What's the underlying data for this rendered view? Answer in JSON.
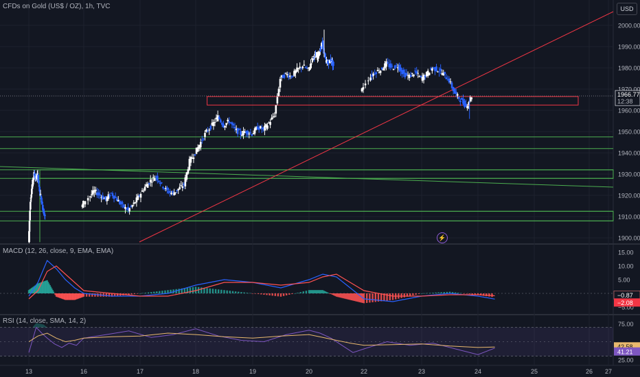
{
  "header": {
    "symbol_title": "CFDs on Gold (US$ / OZ), 1h, TVC",
    "currency": "USD"
  },
  "price_pane": {
    "current_price": "1966.77",
    "countdown": "12:38",
    "y_ticks": [
      "2000.00",
      "1990.00",
      "1980.00",
      "1970.00",
      "1960.00",
      "1950.00",
      "1940.00",
      "1930.00",
      "1920.00",
      "1910.00",
      "1900.00"
    ]
  },
  "macd_pane": {
    "title": "MACD (12, 26, close, 9, EMA, EMA)",
    "y_ticks": [
      "15.00",
      "10.00",
      "5.00",
      "−5.00"
    ],
    "value_badges": [
      "−0.87",
      "−2.08"
    ]
  },
  "rsi_pane": {
    "title": "RSI (14, close, SMA, 14, 2)",
    "y_ticks": [
      "75.00",
      "25.00"
    ],
    "value_badges": [
      "42.58",
      "41.21"
    ]
  },
  "x_axis": {
    "ticks": [
      "13",
      "16",
      "17",
      "18",
      "19",
      "20",
      "22",
      "23",
      "24",
      "25",
      "26",
      "27"
    ]
  },
  "colors": {
    "background": "#131722",
    "up_candle": "#ffffff",
    "down_candle": "#2962ff",
    "support_lines": "#4caf50",
    "trend_line": "#f23645",
    "macd_line": "#2962ff",
    "signal_line": "#ff5252",
    "hist_pos": "#26a69a",
    "hist_neg": "#ff5252",
    "rsi_line": "#7e57c2",
    "rsi_ma": "#e9b96e"
  },
  "chart_data": {
    "type": "candlestick",
    "title": "CFDs on Gold (US$ / OZ), 1h, TVC",
    "ylim": [
      1896,
      2006
    ],
    "x_tick_positions": [
      13,
      16,
      17,
      18,
      19,
      20,
      22,
      23,
      24,
      25,
      26,
      27
    ],
    "price_series": [
      [
        13.0,
        1898.0
      ],
      [
        13.1,
        1918.0
      ],
      [
        13.2,
        1925.0
      ],
      [
        13.3,
        1930.0
      ],
      [
        13.4,
        1928.0
      ],
      [
        13.5,
        1929.5
      ],
      [
        13.6,
        1922.0
      ],
      [
        13.7,
        1918.0
      ],
      [
        13.8,
        1913.0
      ],
      [
        13.9,
        1910.0
      ],
      [
        15.9,
        1914.0
      ],
      [
        16.1,
        1919.0
      ],
      [
        16.2,
        1922.0
      ],
      [
        16.3,
        1920.0
      ],
      [
        16.4,
        1918.0
      ],
      [
        16.5,
        1921.0
      ],
      [
        16.6,
        1918.0
      ],
      [
        16.7,
        1915.0
      ],
      [
        16.8,
        1913.0
      ],
      [
        16.9,
        1916.0
      ],
      [
        17.0,
        1920.0
      ],
      [
        17.1,
        1924.0
      ],
      [
        17.2,
        1927.0
      ],
      [
        17.3,
        1929.0
      ],
      [
        17.4,
        1925.0
      ],
      [
        17.5,
        1922.0
      ],
      [
        17.6,
        1921.0
      ],
      [
        17.7,
        1923.0
      ],
      [
        17.8,
        1925.0
      ],
      [
        17.9,
        1936.0
      ],
      [
        18.0,
        1940.0
      ],
      [
        18.1,
        1945.0
      ],
      [
        18.2,
        1950.0
      ],
      [
        18.3,
        1953.0
      ],
      [
        18.4,
        1957.0
      ],
      [
        18.5,
        1953.0
      ],
      [
        18.6,
        1955.0
      ],
      [
        18.7,
        1951.0
      ],
      [
        18.8,
        1949.0
      ],
      [
        18.9,
        1950.0
      ],
      [
        19.0,
        1949.0
      ],
      [
        19.1,
        1952.0
      ],
      [
        19.2,
        1951.0
      ],
      [
        19.3,
        1954.0
      ],
      [
        19.4,
        1958.0
      ],
      [
        19.5,
        1975.0
      ],
      [
        19.6,
        1977.0
      ],
      [
        19.7,
        1976.0
      ],
      [
        19.8,
        1979.0
      ],
      [
        19.9,
        1981.0
      ],
      [
        20.0,
        1979.0
      ],
      [
        20.1,
        1983.0
      ],
      [
        20.2,
        1986.0
      ],
      [
        20.3,
        1985.0
      ],
      [
        20.4,
        1988.0
      ],
      [
        20.5,
        1992.0
      ],
      [
        20.6,
        1984.0
      ],
      [
        20.7,
        1982.0
      ],
      [
        20.8,
        1984.0
      ],
      [
        20.9,
        1981.0
      ],
      [
        21.9,
        1968.0
      ],
      [
        22.1,
        1975.0
      ],
      [
        22.2,
        1978.0
      ],
      [
        22.3,
        1979.0
      ],
      [
        22.4,
        1982.0
      ],
      [
        22.5,
        1980.0
      ],
      [
        22.6,
        1981.0
      ],
      [
        22.7,
        1977.0
      ],
      [
        22.8,
        1976.0
      ],
      [
        22.9,
        1978.0
      ],
      [
        23.0,
        1975.0
      ],
      [
        23.1,
        1977.0
      ],
      [
        23.2,
        1980.0
      ],
      [
        23.3,
        1979.0
      ],
      [
        23.4,
        1977.0
      ],
      [
        23.5,
        1974.0
      ],
      [
        23.6,
        1968.0
      ],
      [
        23.7,
        1965.0
      ],
      [
        23.8,
        1962.0
      ],
      [
        23.9,
        1966.8
      ]
    ],
    "horizontal_levels": [
      1947.5,
      1942.0,
      1932.0,
      1928.0,
      1912.5,
      1908.0
    ],
    "zones": [
      {
        "from_price": 1962.5,
        "to_price": 1966.5,
        "from_x": 18.2,
        "to_x": 25.8
      }
    ],
    "macd": {
      "ylim": [
        -7,
        16
      ],
      "macd_line": [
        [
          13.0,
          -1
        ],
        [
          13.5,
          4
        ],
        [
          14.0,
          12
        ],
        [
          14.5,
          9
        ],
        [
          15.0,
          5
        ],
        [
          15.5,
          2
        ],
        [
          16.0,
          0
        ],
        [
          16.5,
          -1
        ],
        [
          17.0,
          -1
        ],
        [
          17.5,
          0
        ],
        [
          18.0,
          3
        ],
        [
          18.5,
          5
        ],
        [
          19.0,
          4
        ],
        [
          19.5,
          2
        ],
        [
          20.0,
          5
        ],
        [
          20.5,
          7
        ],
        [
          21.0,
          6
        ],
        [
          22.0,
          -2
        ],
        [
          22.5,
          -3
        ],
        [
          23.0,
          -1
        ],
        [
          23.5,
          0
        ],
        [
          24.0,
          -1
        ],
        [
          24.3,
          -2.08
        ]
      ],
      "signal_line": [
        [
          13.0,
          -2
        ],
        [
          13.5,
          1
        ],
        [
          14.0,
          8
        ],
        [
          14.5,
          10
        ],
        [
          15.0,
          7
        ],
        [
          15.5,
          4
        ],
        [
          16.0,
          1
        ],
        [
          16.5,
          0
        ],
        [
          17.0,
          -1
        ],
        [
          17.5,
          -1
        ],
        [
          18.0,
          1
        ],
        [
          18.5,
          4
        ],
        [
          19.0,
          4
        ],
        [
          19.5,
          3
        ],
        [
          20.0,
          4
        ],
        [
          20.5,
          6
        ],
        [
          21.0,
          7
        ],
        [
          22.0,
          1
        ],
        [
          22.5,
          -1
        ],
        [
          23.0,
          -1
        ],
        [
          23.5,
          -0.5
        ],
        [
          24.0,
          -0.5
        ],
        [
          24.3,
          -0.87
        ]
      ]
    },
    "rsi": {
      "ylim": [
        20,
        82
      ],
      "bands": [
        70,
        30
      ],
      "rsi_line": [
        [
          13.0,
          35
        ],
        [
          13.4,
          70
        ],
        [
          13.7,
          62
        ],
        [
          14.0,
          55
        ],
        [
          14.4,
          47
        ],
        [
          14.8,
          42
        ],
        [
          15.2,
          48
        ],
        [
          15.6,
          45
        ],
        [
          16.0,
          55
        ],
        [
          16.4,
          60
        ],
        [
          16.8,
          65
        ],
        [
          17.2,
          56
        ],
        [
          17.6,
          60
        ],
        [
          18.0,
          68
        ],
        [
          18.4,
          58
        ],
        [
          18.8,
          52
        ],
        [
          19.2,
          50
        ],
        [
          19.6,
          60
        ],
        [
          20.0,
          66
        ],
        [
          20.4,
          62
        ],
        [
          20.8,
          55
        ],
        [
          21.2,
          45
        ],
        [
          21.6,
          35
        ],
        [
          22.0,
          40
        ],
        [
          22.4,
          50
        ],
        [
          22.8,
          45
        ],
        [
          23.2,
          48
        ],
        [
          23.6,
          40
        ],
        [
          24.0,
          32
        ],
        [
          24.3,
          41.21
        ]
      ],
      "rsi_ma": [
        [
          13.0,
          50
        ],
        [
          13.5,
          58
        ],
        [
          14.0,
          62
        ],
        [
          14.5,
          55
        ],
        [
          15.0,
          50
        ],
        [
          15.5,
          52
        ],
        [
          16.0,
          55
        ],
        [
          16.5,
          57
        ],
        [
          17.0,
          58
        ],
        [
          17.5,
          62
        ],
        [
          18.0,
          60
        ],
        [
          18.5,
          57
        ],
        [
          19.0,
          55
        ],
        [
          19.5,
          58
        ],
        [
          20.0,
          60
        ],
        [
          20.5,
          56
        ],
        [
          21.0,
          52
        ],
        [
          21.5,
          48
        ],
        [
          22.0,
          45
        ],
        [
          22.5,
          46
        ],
        [
          23.0,
          47
        ],
        [
          23.5,
          44
        ],
        [
          24.0,
          42
        ],
        [
          24.3,
          42.58
        ]
      ]
    }
  }
}
